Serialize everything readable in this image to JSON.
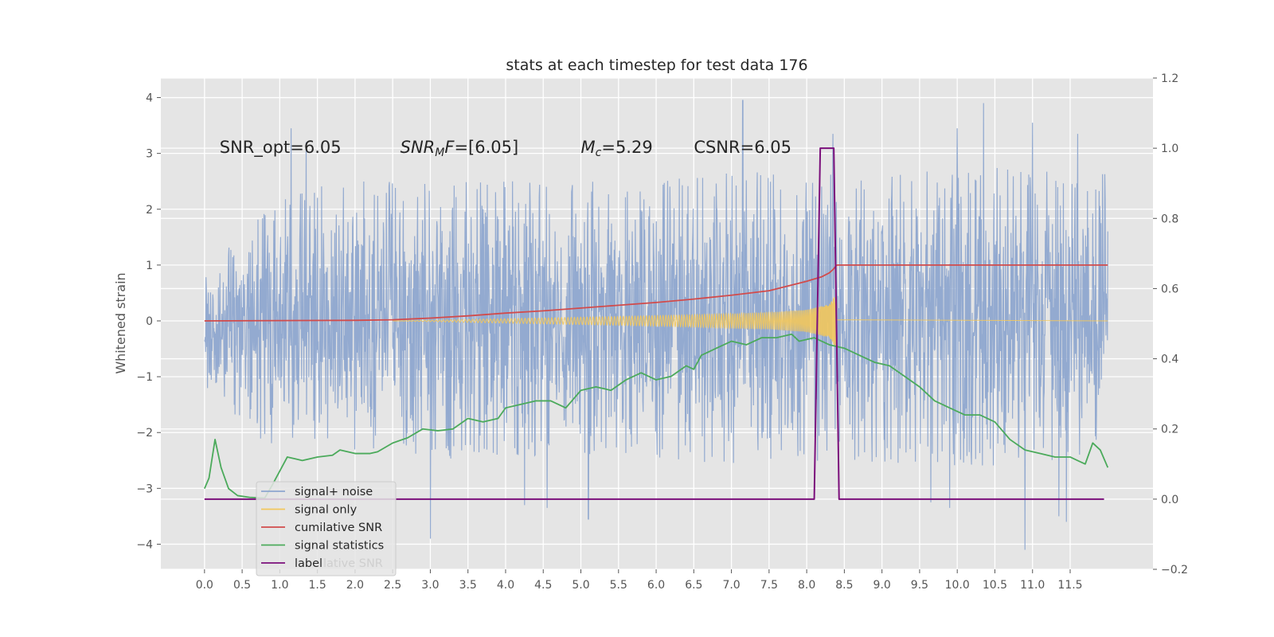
{
  "chart_data": {
    "type": "line",
    "title": "stats at each timestep for test data 176",
    "ylabel": "Whitened strain",
    "xlabel": "",
    "xlim": [
      -0.58,
      12.6
    ],
    "ylim": [
      -4.45,
      4.35
    ],
    "y2lim": [
      -0.2,
      1.2
    ],
    "grid": true,
    "legend_position": "lower-left",
    "x_ticks": [
      "0.0",
      "0.5",
      "1.0",
      "1.5",
      "2.0",
      "2.5",
      "3.0",
      "3.5",
      "4.0",
      "4.5",
      "5.0",
      "5.5",
      "6.0",
      "6.5",
      "7.0",
      "7.5",
      "8.0",
      "8.5",
      "9.0",
      "9.5",
      "10.0",
      "10.5",
      "11.0",
      "11.5"
    ],
    "y_ticks": [
      "4",
      "3",
      "2",
      "1",
      "0",
      "−1",
      "−2",
      "−3",
      "−4"
    ],
    "y2_ticks": [
      "1.2",
      "1.0",
      "0.8",
      "0.6",
      "0.4",
      "0.2",
      "0.0",
      "−0.2"
    ],
    "annotations": [
      {
        "parts": [
          {
            "t": "SNR_opt=6.05"
          }
        ],
        "x": 0.2,
        "y": 3.12
      },
      {
        "parts": [
          {
            "t": "SNR",
            "i": true
          },
          {
            "t": "M",
            "i": true,
            "sub": true
          },
          {
            "t": "F",
            "i": true
          },
          {
            "t": "=[6.05]"
          }
        ],
        "x": 2.6,
        "y": 3.12
      },
      {
        "parts": [
          {
            "t": "M",
            "i": true
          },
          {
            "t": "c",
            "i": true,
            "sub": true
          },
          {
            "t": "=5.29"
          }
        ],
        "x": 5.0,
        "y": 3.12
      },
      {
        "parts": [
          {
            "t": "CSNR=6.05"
          }
        ],
        "x": 6.5,
        "y": 3.12
      }
    ],
    "legend": [
      {
        "label": "signal+ noise",
        "color": "#8EA6CF"
      },
      {
        "label": "signal only",
        "color": "#F2C75C"
      },
      {
        "label": "cumilative SNR",
        "color": "#D24B4B"
      },
      {
        "label": "signal statistics",
        "color": "#4BAA5B"
      },
      {
        "label": "label",
        "color": "#7B0F7B"
      }
    ],
    "legend_faded_label": "lative SNR",
    "series": [
      {
        "name": "signal+ noise",
        "axis": "left",
        "color": "#8EA6CF",
        "kind": "noise",
        "x_range": [
          0,
          12.0
        ],
        "envelope_upper": [
          [
            0,
            1.05
          ],
          [
            1.0,
            2.3
          ],
          [
            2.0,
            2.55
          ],
          [
            3.0,
            2.45
          ],
          [
            4.0,
            2.55
          ],
          [
            5.0,
            2.5
          ],
          [
            6.0,
            2.5
          ],
          [
            7.0,
            2.7
          ],
          [
            8.0,
            2.65
          ],
          [
            9.0,
            2.6
          ],
          [
            10.0,
            2.85
          ],
          [
            11.0,
            2.7
          ],
          [
            12.0,
            2.65
          ]
        ],
        "envelope_lower": [
          [
            0,
            -1.45
          ],
          [
            1.0,
            -2.35
          ],
          [
            2.0,
            -2.4
          ],
          [
            3.0,
            -2.5
          ],
          [
            4.0,
            -2.45
          ],
          [
            5.0,
            -2.45
          ],
          [
            6.0,
            -2.5
          ],
          [
            7.0,
            -2.55
          ],
          [
            8.0,
            -2.6
          ],
          [
            9.0,
            -2.55
          ],
          [
            10.0,
            -2.6
          ],
          [
            11.0,
            -2.6
          ],
          [
            12.0,
            -2.3
          ]
        ],
        "peaks": [
          [
            1.15,
            3.45
          ],
          [
            1.35,
            3.2
          ],
          [
            3.0,
            -3.9
          ],
          [
            4.25,
            -3.3
          ],
          [
            4.55,
            -3.35
          ],
          [
            5.1,
            -3.55
          ],
          [
            7.15,
            3.95
          ],
          [
            8.35,
            3.35
          ],
          [
            9.65,
            -3.25
          ],
          [
            9.9,
            -3.35
          ],
          [
            10.0,
            3.45
          ],
          [
            10.35,
            3.9
          ],
          [
            10.9,
            -4.1
          ],
          [
            11.0,
            3.55
          ],
          [
            11.35,
            -3.5
          ],
          [
            11.45,
            -3.6
          ],
          [
            11.6,
            3.35
          ]
        ]
      },
      {
        "name": "signal only",
        "axis": "left",
        "color": "#F2C75C",
        "kind": "chirp",
        "x_range": [
          2.5,
          12.0
        ],
        "merger_x": 8.4,
        "amplitude": [
          [
            2.5,
            0.0
          ],
          [
            4.0,
            0.04
          ],
          [
            5.5,
            0.08
          ],
          [
            6.5,
            0.11
          ],
          [
            7.5,
            0.15
          ],
          [
            8.0,
            0.2
          ],
          [
            8.3,
            0.3
          ],
          [
            8.4,
            0.5
          ],
          [
            8.45,
            0.0
          ]
        ]
      },
      {
        "name": "cumilative SNR",
        "axis": "left",
        "color": "#D24B4B",
        "points": [
          [
            0,
            0.0
          ],
          [
            1.0,
            0.005
          ],
          [
            2.0,
            0.01
          ],
          [
            2.5,
            0.02
          ],
          [
            3.0,
            0.05
          ],
          [
            3.5,
            0.09
          ],
          [
            4.0,
            0.14
          ],
          [
            4.5,
            0.18
          ],
          [
            5.0,
            0.23
          ],
          [
            5.5,
            0.28
          ],
          [
            6.0,
            0.33
          ],
          [
            6.5,
            0.39
          ],
          [
            7.0,
            0.46
          ],
          [
            7.5,
            0.54
          ],
          [
            8.0,
            0.71
          ],
          [
            8.2,
            0.79
          ],
          [
            8.3,
            0.86
          ],
          [
            8.35,
            0.92
          ],
          [
            8.4,
            1.0
          ],
          [
            12.0,
            1.0
          ]
        ]
      },
      {
        "name": "signal statistics",
        "axis": "right",
        "color": "#4BAA5B",
        "points": [
          [
            0,
            0.03
          ],
          [
            0.06,
            0.06
          ],
          [
            0.14,
            0.17
          ],
          [
            0.22,
            0.09
          ],
          [
            0.32,
            0.03
          ],
          [
            0.44,
            0.01
          ],
          [
            0.6,
            0.005
          ],
          [
            0.8,
            0.003
          ],
          [
            0.9,
            0.04
          ],
          [
            1.0,
            0.08
          ],
          [
            1.1,
            0.12
          ],
          [
            1.2,
            0.115
          ],
          [
            1.3,
            0.11
          ],
          [
            1.5,
            0.12
          ],
          [
            1.7,
            0.125
          ],
          [
            1.8,
            0.14
          ],
          [
            2.0,
            0.13
          ],
          [
            2.2,
            0.13
          ],
          [
            2.3,
            0.135
          ],
          [
            2.5,
            0.16
          ],
          [
            2.7,
            0.175
          ],
          [
            2.9,
            0.2
          ],
          [
            3.1,
            0.195
          ],
          [
            3.3,
            0.2
          ],
          [
            3.5,
            0.23
          ],
          [
            3.7,
            0.22
          ],
          [
            3.9,
            0.23
          ],
          [
            4.0,
            0.26
          ],
          [
            4.2,
            0.27
          ],
          [
            4.4,
            0.28
          ],
          [
            4.6,
            0.28
          ],
          [
            4.8,
            0.26
          ],
          [
            5.0,
            0.31
          ],
          [
            5.2,
            0.32
          ],
          [
            5.4,
            0.31
          ],
          [
            5.6,
            0.34
          ],
          [
            5.8,
            0.36
          ],
          [
            6.0,
            0.34
          ],
          [
            6.2,
            0.35
          ],
          [
            6.4,
            0.38
          ],
          [
            6.5,
            0.37
          ],
          [
            6.6,
            0.41
          ],
          [
            6.8,
            0.43
          ],
          [
            7.0,
            0.45
          ],
          [
            7.2,
            0.44
          ],
          [
            7.4,
            0.46
          ],
          [
            7.6,
            0.46
          ],
          [
            7.8,
            0.47
          ],
          [
            7.9,
            0.45
          ],
          [
            8.1,
            0.46
          ],
          [
            8.3,
            0.44
          ],
          [
            8.5,
            0.43
          ],
          [
            8.7,
            0.41
          ],
          [
            8.9,
            0.39
          ],
          [
            9.1,
            0.38
          ],
          [
            9.3,
            0.35
          ],
          [
            9.5,
            0.32
          ],
          [
            9.7,
            0.28
          ],
          [
            9.9,
            0.26
          ],
          [
            10.1,
            0.24
          ],
          [
            10.3,
            0.24
          ],
          [
            10.5,
            0.22
          ],
          [
            10.7,
            0.17
          ],
          [
            10.9,
            0.14
          ],
          [
            11.1,
            0.13
          ],
          [
            11.3,
            0.12
          ],
          [
            11.5,
            0.12
          ],
          [
            11.6,
            0.11
          ],
          [
            11.7,
            0.1
          ],
          [
            11.8,
            0.16
          ],
          [
            11.9,
            0.14
          ],
          [
            12.0,
            0.09
          ]
        ]
      },
      {
        "name": "label",
        "axis": "right",
        "color": "#7B0F7B",
        "points": [
          [
            0,
            0.0
          ],
          [
            8.1,
            0.0
          ],
          [
            8.18,
            1.0
          ],
          [
            8.36,
            1.0
          ],
          [
            8.43,
            0.0
          ],
          [
            11.95,
            0.0
          ]
        ]
      }
    ]
  }
}
